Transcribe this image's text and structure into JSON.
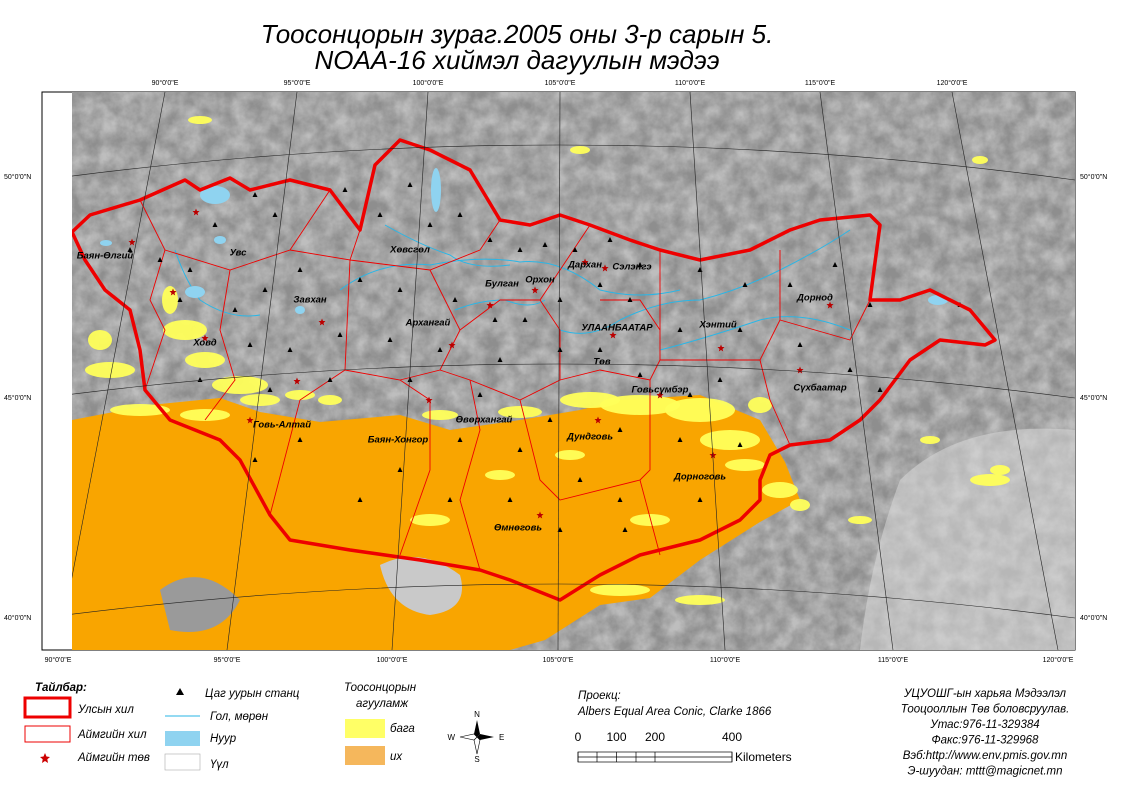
{
  "title": {
    "line1": "Тоосонцорын зураг.2005 оны 3-р сарын 5.",
    "line2": "NOAA-16 хиймэл дагуулын мэдээ"
  },
  "graticule": {
    "top": [
      "90°0'0\"E",
      "95°0'0\"E",
      "100°0'0\"E",
      "105°0'0\"E",
      "110°0'0\"E",
      "115°0'0\"E",
      "120°0'0\"E"
    ],
    "bottom": [
      "90°0'0\"E",
      "95°0'0\"E",
      "100°0'0\"E",
      "105°0'0\"E",
      "110°0'0\"E",
      "115°0'0\"E",
      "120°0'0\"E"
    ],
    "left": [
      "50°0'0\"N",
      "45°0'0\"N",
      "40°0'0\"N"
    ],
    "right": [
      "50°0'0\"N",
      "45°0'0\"N",
      "40°0'0\"N"
    ]
  },
  "provinces": [
    "Баян-Өлгий",
    "Увс",
    "Ховд",
    "Завхан",
    "Хөвсгөл",
    "Булган",
    "Орхон",
    "Дархан",
    "Сэлэнгэ",
    "Архангай",
    "УЛААНБААТАР",
    "Төв",
    "Хэнтий",
    "Дорнод",
    "Сүхбаатар",
    "Говьсүмбэр",
    "Говь-Алтай",
    "Баян-Хонгор",
    "Өвөрхангай",
    "Дундговь",
    "Дорноговь",
    "Өмнөговь"
  ],
  "legend": {
    "title": "Тайлбар:",
    "items": [
      "Улсын хил",
      "Аймгийн хил",
      "Аймгийн төв",
      "Цаг уурын станц",
      "Гол, мөрөн",
      "Нуур",
      "Үүл"
    ],
    "dust_title": [
      "Тоосонцорын",
      "агууламж"
    ],
    "dust_levels": [
      "бага",
      "их"
    ]
  },
  "compass": {
    "n": "N",
    "e": "E",
    "s": "S",
    "w": "W"
  },
  "projection": {
    "label": "Проекц:",
    "name": "Albers Equal Area Conic, Clarke 1866"
  },
  "scale": {
    "ticks": [
      0,
      100,
      200,
      400
    ],
    "unit": "Kilometers"
  },
  "credits": [
    "УЦУОШГ-ын харьяа Мэдээлэл",
    "Тооцооллын Төв боловсруулав.",
    "Утас:976-11-329384",
    "Факс:976-11-329968",
    "Вэб:http://www.env.pmis.gov.mn",
    "Э-шуудан: mttt@magicnet.mn"
  ]
}
